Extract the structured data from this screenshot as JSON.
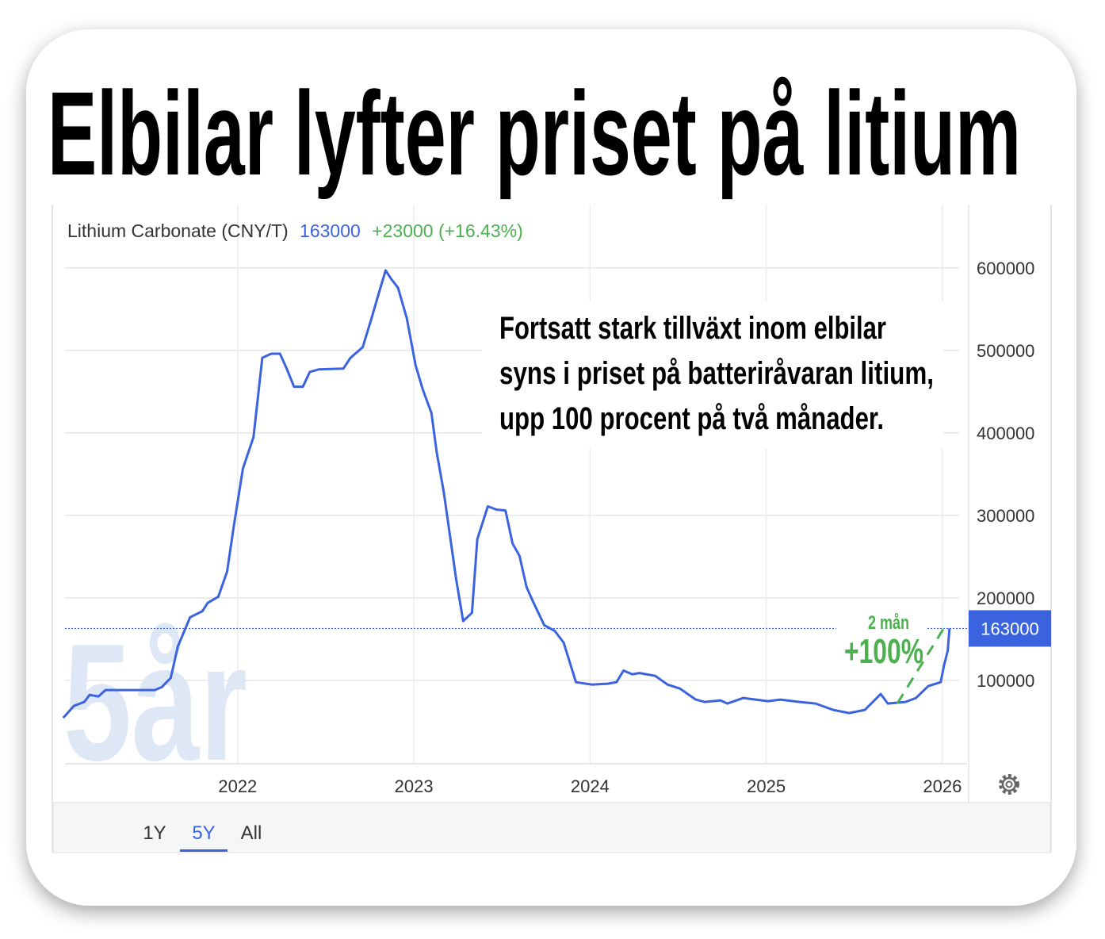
{
  "chart_data": {
    "type": "line",
    "title": "Elbilar lyfter priset på litium",
    "change_label": "+23000 (+16.43%)",
    "price": 163000,
    "annotations": [
      "Fortsatt stark tillväxt inom elbilar",
      "syns i priset på batteriråvaran litium,",
      "upp 100 procent på två månader."
    ],
    "callout": {
      "period": "2 mån",
      "change": "+100%"
    },
    "watermark": "5år",
    "ranges": [
      "1Y",
      "5Y",
      "All"
    ],
    "active_range": 1,
    "x": [
      2021.01,
      2021.07,
      2021.13,
      2021.16,
      2021.21,
      2021.25,
      2021.53,
      2021.57,
      2021.62,
      2021.66,
      2021.73,
      2021.8,
      2021.83,
      2021.89,
      2021.94,
      2021.98,
      2022.03,
      2022.09,
      2022.14,
      2022.19,
      2022.24,
      2022.28,
      2022.32,
      2022.37,
      2022.41,
      2022.46,
      2022.6,
      2022.64,
      2022.71,
      2022.76,
      2022.81,
      2022.84,
      2022.87,
      2022.91,
      2022.96,
      2023.01,
      2023.05,
      2023.1,
      2023.13,
      2023.17,
      2023.24,
      2023.28,
      2023.33,
      2023.36,
      2023.42,
      2023.47,
      2023.52,
      2023.56,
      2023.6,
      2023.64,
      2023.68,
      2023.74,
      2023.8,
      2023.85,
      2023.92,
      2024.01,
      2024.1,
      2024.15,
      2024.19,
      2024.24,
      2024.28,
      2024.37,
      2024.44,
      2024.51,
      2024.6,
      2024.65,
      2024.74,
      2024.78,
      2024.87,
      2025.01,
      2025.08,
      2025.19,
      2025.28,
      2025.38,
      2025.47,
      2025.56,
      2025.6,
      2025.65,
      2025.69,
      2025.79,
      2025.85,
      2025.92,
      2025.99,
      2026.01,
      2026.03,
      2026.04
    ],
    "series": [
      {
        "name": "Lithium Carbonate (CNY/T)",
        "color": "#3b63e0",
        "values": [
          54700,
          69000,
          74000,
          82500,
          80600,
          88300,
          88300,
          92000,
          103000,
          141000,
          176600,
          184000,
          194000,
          201500,
          232000,
          290000,
          357000,
          395000,
          491000,
          496000,
          496000,
          477000,
          456000,
          456000,
          474000,
          477000,
          478000,
          491000,
          504000,
          539000,
          576000,
          597000,
          587000,
          576000,
          539000,
          482000,
          453000,
          424000,
          376000,
          328000,
          223000,
          172000,
          182000,
          271000,
          311000,
          307000,
          306000,
          266000,
          251000,
          213000,
          194000,
          167000,
          160000,
          146000,
          97900,
          95000,
          96000,
          97900,
          112000,
          107500,
          109000,
          105500,
          95000,
          90200,
          76800,
          73900,
          75800,
          72000,
          78700,
          74900,
          76800,
          73900,
          72000,
          64300,
          60500,
          64300,
          72900,
          83500,
          72000,
          73900,
          78700,
          93100,
          97900,
          119000,
          136000,
          163000
        ]
      }
    ],
    "xlim": [
      2021.02,
      2026.14
    ],
    "xticks": [
      2022,
      2023,
      2024,
      2025,
      2026
    ],
    "ylim": [
      0,
      670000
    ],
    "yticks": [
      100000,
      200000,
      300000,
      400000,
      500000,
      600000
    ],
    "grid": true
  }
}
